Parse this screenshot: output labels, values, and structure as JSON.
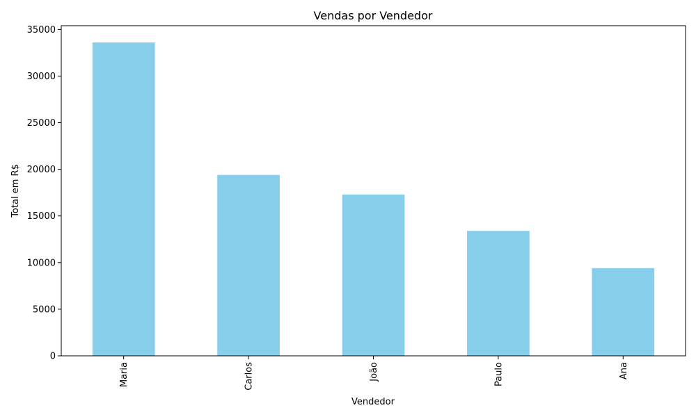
{
  "chart_data": {
    "type": "bar",
    "title": "Vendas por Vendedor",
    "xlabel": "Vendedor",
    "ylabel": "Total em R$",
    "categories": [
      "Maria",
      "Carlos",
      "João",
      "Paulo",
      "Ana"
    ],
    "values": [
      33600,
      19400,
      17300,
      13400,
      9400
    ],
    "ylim": [
      0,
      35400
    ],
    "yticks": [
      0,
      5000,
      10000,
      15000,
      20000,
      25000,
      30000,
      35000
    ],
    "bar_color": "#87ceeb",
    "grid": false,
    "legend": "none"
  }
}
